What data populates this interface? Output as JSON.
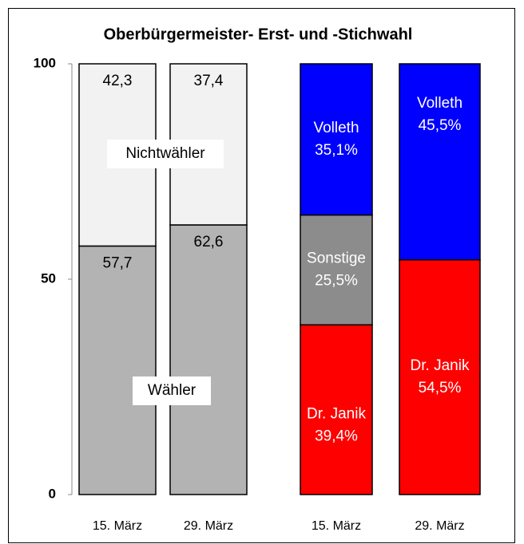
{
  "chart_data": {
    "type": "bar",
    "stacked": true,
    "title": "Oberbürgermeister- Erst- und -Stichwahl",
    "categories": [
      "15. März",
      "29. März",
      "15. März",
      "29. März"
    ],
    "series": [
      {
        "name": "Wähler",
        "color": "#b3b3b3",
        "values": [
          57.7,
          62.6,
          null,
          null
        ],
        "value_labels": [
          "57,7",
          "62,6",
          null,
          null
        ]
      },
      {
        "name": "Nichtwähler",
        "color": "#f2f2f2",
        "values": [
          42.3,
          37.4,
          null,
          null
        ],
        "value_labels": [
          "42,3",
          "37,4",
          null,
          null
        ]
      },
      {
        "name": "Dr. Janik",
        "color": "#ff0000",
        "values": [
          null,
          null,
          39.4,
          54.5
        ],
        "value_labels": [
          null,
          null,
          "39,4%",
          "54,5%"
        ]
      },
      {
        "name": "Sonstige",
        "color": "#8c8c8c",
        "values": [
          null,
          null,
          25.5,
          null
        ],
        "value_labels": [
          null,
          null,
          "25,5%",
          null
        ]
      },
      {
        "name": "Volleth",
        "color": "#0000ff",
        "values": [
          null,
          null,
          35.1,
          45.5
        ],
        "value_labels": [
          null,
          null,
          "35,1%",
          "45,5%"
        ]
      }
    ],
    "ylim": [
      0,
      100
    ],
    "yticks": [
      0,
      50,
      100
    ]
  }
}
